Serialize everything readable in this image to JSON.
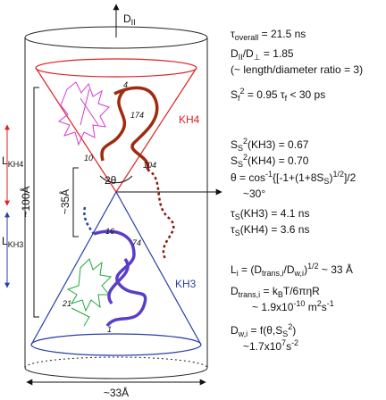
{
  "axis_label": [
    "D",
    "II"
  ],
  "params": {
    "tau_overall": [
      "τ",
      "overall",
      " = 21.5 ns"
    ],
    "d_ratio": [
      "D",
      "II",
      "/D",
      "⊥",
      " = 1.85"
    ],
    "ratio_note": "(~ length/diameter ratio = 3)",
    "sf": [
      "S",
      "f",
      "2",
      " = 0.95 τ",
      "f",
      " < 30 ps"
    ],
    "ss_kh3": [
      "S",
      "S",
      "2",
      "(KH3) = 0.67"
    ],
    "ss_kh4": [
      "S",
      "S",
      "2",
      "(KH4) = 0.70"
    ],
    "theta": [
      "θ = cos",
      "-1",
      "{[-1+(1+8S",
      "S",
      ")",
      "1/2",
      "]/2"
    ],
    "theta_approx": "~30°",
    "taus_kh3": [
      "τ",
      "S",
      "(KH3) = 4.1 ns"
    ],
    "taus_kh4": [
      "τ",
      "S",
      "(KH4) = 3.6 ns"
    ],
    "li": [
      "L",
      "i",
      " = (D",
      "trans,i",
      "/D",
      "w,i",
      ")",
      "1/2",
      " ~ 33 Å"
    ],
    "dtrans": [
      "D",
      "trans,i",
      " = k",
      "B",
      "T/6πηR"
    ],
    "dtrans_val": [
      "~ 1.9x10",
      "-10",
      " m",
      "2",
      "s",
      "-1"
    ],
    "dw": [
      "D",
      "w,i",
      " = f(θ,S",
      "S",
      "2",
      ")"
    ],
    "dw_val": [
      "~1.7x10",
      "7",
      "s",
      "-2"
    ]
  },
  "domains": {
    "kh4": "KH4",
    "kh3": "KH3"
  },
  "dimensions": {
    "width": "~33Å",
    "length": "~100Å",
    "separation": "~35Å",
    "angle": "2θ"
  },
  "lengths": {
    "kh4": [
      "L",
      "KH4"
    ],
    "kh3": [
      "L",
      "KH3"
    ]
  },
  "residues": [
    "4",
    "174",
    "10",
    "104",
    "16",
    "74",
    "21",
    "1"
  ]
}
